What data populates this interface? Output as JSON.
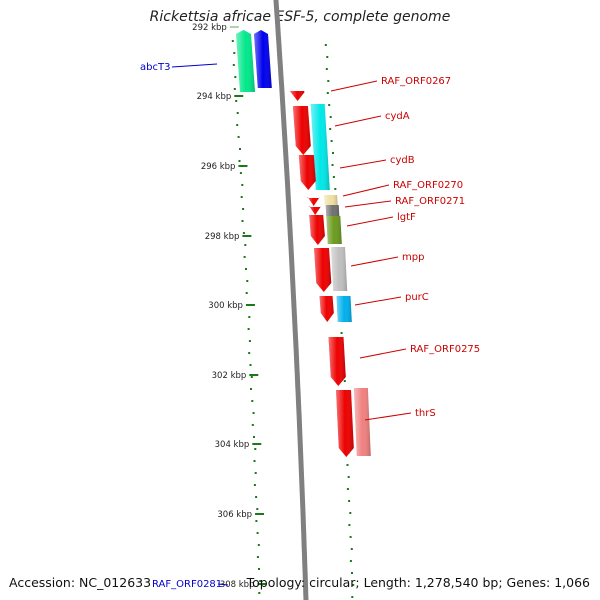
{
  "title": "Rickettsia africae ESF-5, complete genome",
  "footer": {
    "accession": "Accession: NC_012633",
    "summary": "Topology: circular; Length: 1,278,540 bp; Genes: 1,066"
  },
  "colors": {
    "backbone": "#808080",
    "forward_label": "#cc0000",
    "reverse_label": "#0000cc",
    "gc_dots": "#1a7a1a"
  },
  "ticks": [
    {
      "label": "292 kbp",
      "faded": true
    },
    {
      "label": "294 kbp"
    },
    {
      "label": "296 kbp"
    },
    {
      "label": "298 kbp"
    },
    {
      "label": "300 kbp"
    },
    {
      "label": "302 kbp"
    },
    {
      "label": "304 kbp"
    },
    {
      "label": "306 kbp"
    },
    {
      "label": "308 kbp"
    }
  ],
  "labels": [
    {
      "text": "abcT3",
      "strand": "reverse"
    },
    {
      "text": "RAF_ORF0267",
      "strand": "forward"
    },
    {
      "text": "cydA",
      "strand": "forward"
    },
    {
      "text": "cydB",
      "strand": "forward"
    },
    {
      "text": "RAF_ORF0270",
      "strand": "forward"
    },
    {
      "text": "RAF_ORF0271",
      "strand": "forward"
    },
    {
      "text": "lgtF",
      "strand": "forward"
    },
    {
      "text": "mpp",
      "strand": "forward"
    },
    {
      "text": "purC",
      "strand": "forward"
    },
    {
      "text": "RAF_ORF0275",
      "strand": "forward"
    },
    {
      "text": "thrS",
      "strand": "forward"
    },
    {
      "text": "RAF_ORF0281",
      "strand": "reverse"
    }
  ],
  "genes": [
    {
      "name": "abcT3",
      "color": "#00e88a",
      "strand": "reverse",
      "ring": "outer"
    },
    {
      "name": "abcT3-b",
      "color": "#0000ee",
      "strand": "reverse",
      "ring": "inner"
    },
    {
      "name": "RAF_ORF0267",
      "color": "#ee0000",
      "strand": "forward",
      "ring": "outer"
    },
    {
      "name": "cydA",
      "color": "#ee0000",
      "strand": "forward",
      "ring": "outer"
    },
    {
      "name": "cydA-cog",
      "color": "#00e8e8",
      "strand": "forward",
      "ring": "inner"
    },
    {
      "name": "cydB",
      "color": "#ee0000",
      "strand": "forward",
      "ring": "outer"
    },
    {
      "name": "RAF_ORF0270",
      "color": "#ee0000",
      "strand": "forward",
      "ring": "outer"
    },
    {
      "name": "RAF_ORF0270-cog",
      "color": "#f0e0a0",
      "strand": "forward",
      "ring": "inner"
    },
    {
      "name": "RAF_ORF0271",
      "color": "#ee0000",
      "strand": "forward",
      "ring": "outer"
    },
    {
      "name": "RAF_ORF0271-cog",
      "color": "#707070",
      "strand": "forward",
      "ring": "inner"
    },
    {
      "name": "lgtF",
      "color": "#ee0000",
      "strand": "forward",
      "ring": "outer"
    },
    {
      "name": "lgtF-cog",
      "color": "#6a9a1e",
      "strand": "forward",
      "ring": "inner"
    },
    {
      "name": "mpp",
      "color": "#ee0000",
      "strand": "forward",
      "ring": "outer"
    },
    {
      "name": "mpp-cog",
      "color": "#c0c0c0",
      "strand": "forward",
      "ring": "inner"
    },
    {
      "name": "purC",
      "color": "#ee0000",
      "strand": "forward",
      "ring": "outer"
    },
    {
      "name": "purC-cog",
      "color": "#00b0ee",
      "strand": "forward",
      "ring": "inner"
    },
    {
      "name": "RAF_ORF0275",
      "color": "#ee0000",
      "strand": "forward",
      "ring": "outer"
    },
    {
      "name": "thrS",
      "color": "#ee0000",
      "strand": "forward",
      "ring": "outer"
    },
    {
      "name": "thrS-cog",
      "color": "#f08080",
      "strand": "forward",
      "ring": "inner"
    }
  ]
}
